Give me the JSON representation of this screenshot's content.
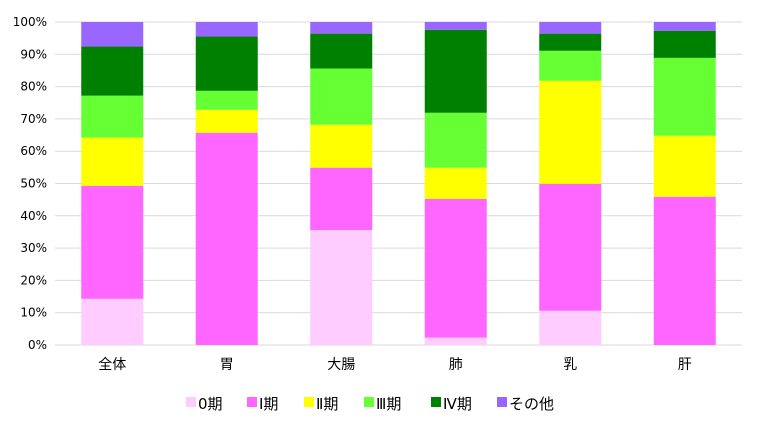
{
  "chart_data": {
    "type": "bar",
    "stacked": "percent",
    "title": "",
    "xlabel": "",
    "ylabel": "",
    "ylim": [
      0,
      100
    ],
    "yticks": [
      "0%",
      "10%",
      "20%",
      "30%",
      "40%",
      "50%",
      "60%",
      "70%",
      "80%",
      "90%",
      "100%"
    ],
    "grid": true,
    "legend_position": "bottom",
    "categories": [
      "全体",
      "胃",
      "大腸",
      "肺",
      "乳",
      "肝"
    ],
    "series": [
      {
        "name": "0期",
        "color": "#ffccff",
        "values": [
          14.3,
          0,
          35.6,
          2.3,
          10.6,
          0
        ]
      },
      {
        "name": "Ⅰ期",
        "color": "#ff66ff",
        "values": [
          35.0,
          65.7,
          19.3,
          42.9,
          39.3,
          45.9
        ]
      },
      {
        "name": "Ⅱ期",
        "color": "#ffff00",
        "values": [
          14.9,
          7.1,
          13.3,
          9.7,
          31.9,
          18.9
        ]
      },
      {
        "name": "Ⅲ期",
        "color": "#66ff33",
        "values": [
          13.0,
          5.9,
          17.4,
          17.0,
          9.3,
          24.1
        ]
      },
      {
        "name": "Ⅳ期",
        "color": "#008000",
        "values": [
          15.2,
          16.8,
          10.8,
          25.7,
          5.3,
          8.4
        ]
      },
      {
        "name": "その他",
        "color": "#9966ff",
        "values": [
          7.6,
          4.5,
          3.6,
          2.4,
          3.6,
          2.7
        ]
      }
    ]
  }
}
